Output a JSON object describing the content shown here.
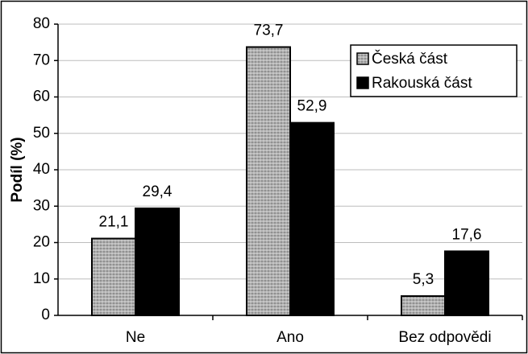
{
  "chart_data": {
    "type": "bar",
    "y_label": "Podíl (%)",
    "categories": [
      "Ne",
      "Ano",
      "Bez odpovědi"
    ],
    "series": [
      {
        "name": "Česká část",
        "color": "#b8b8b8",
        "values": [
          21.1,
          73.7,
          5.3
        ],
        "value_labels": [
          "21,1",
          "73,7",
          "5,3"
        ]
      },
      {
        "name": "Rakouská část",
        "color": "#000000",
        "values": [
          29.4,
          52.9,
          17.6
        ],
        "value_labels": [
          "29,4",
          "52,9",
          "17,6"
        ]
      }
    ],
    "ylim": [
      0,
      80
    ],
    "yticks": [
      0,
      10,
      20,
      30,
      40,
      50,
      60,
      70,
      80
    ],
    "grid": true,
    "legend": "top-right"
  }
}
